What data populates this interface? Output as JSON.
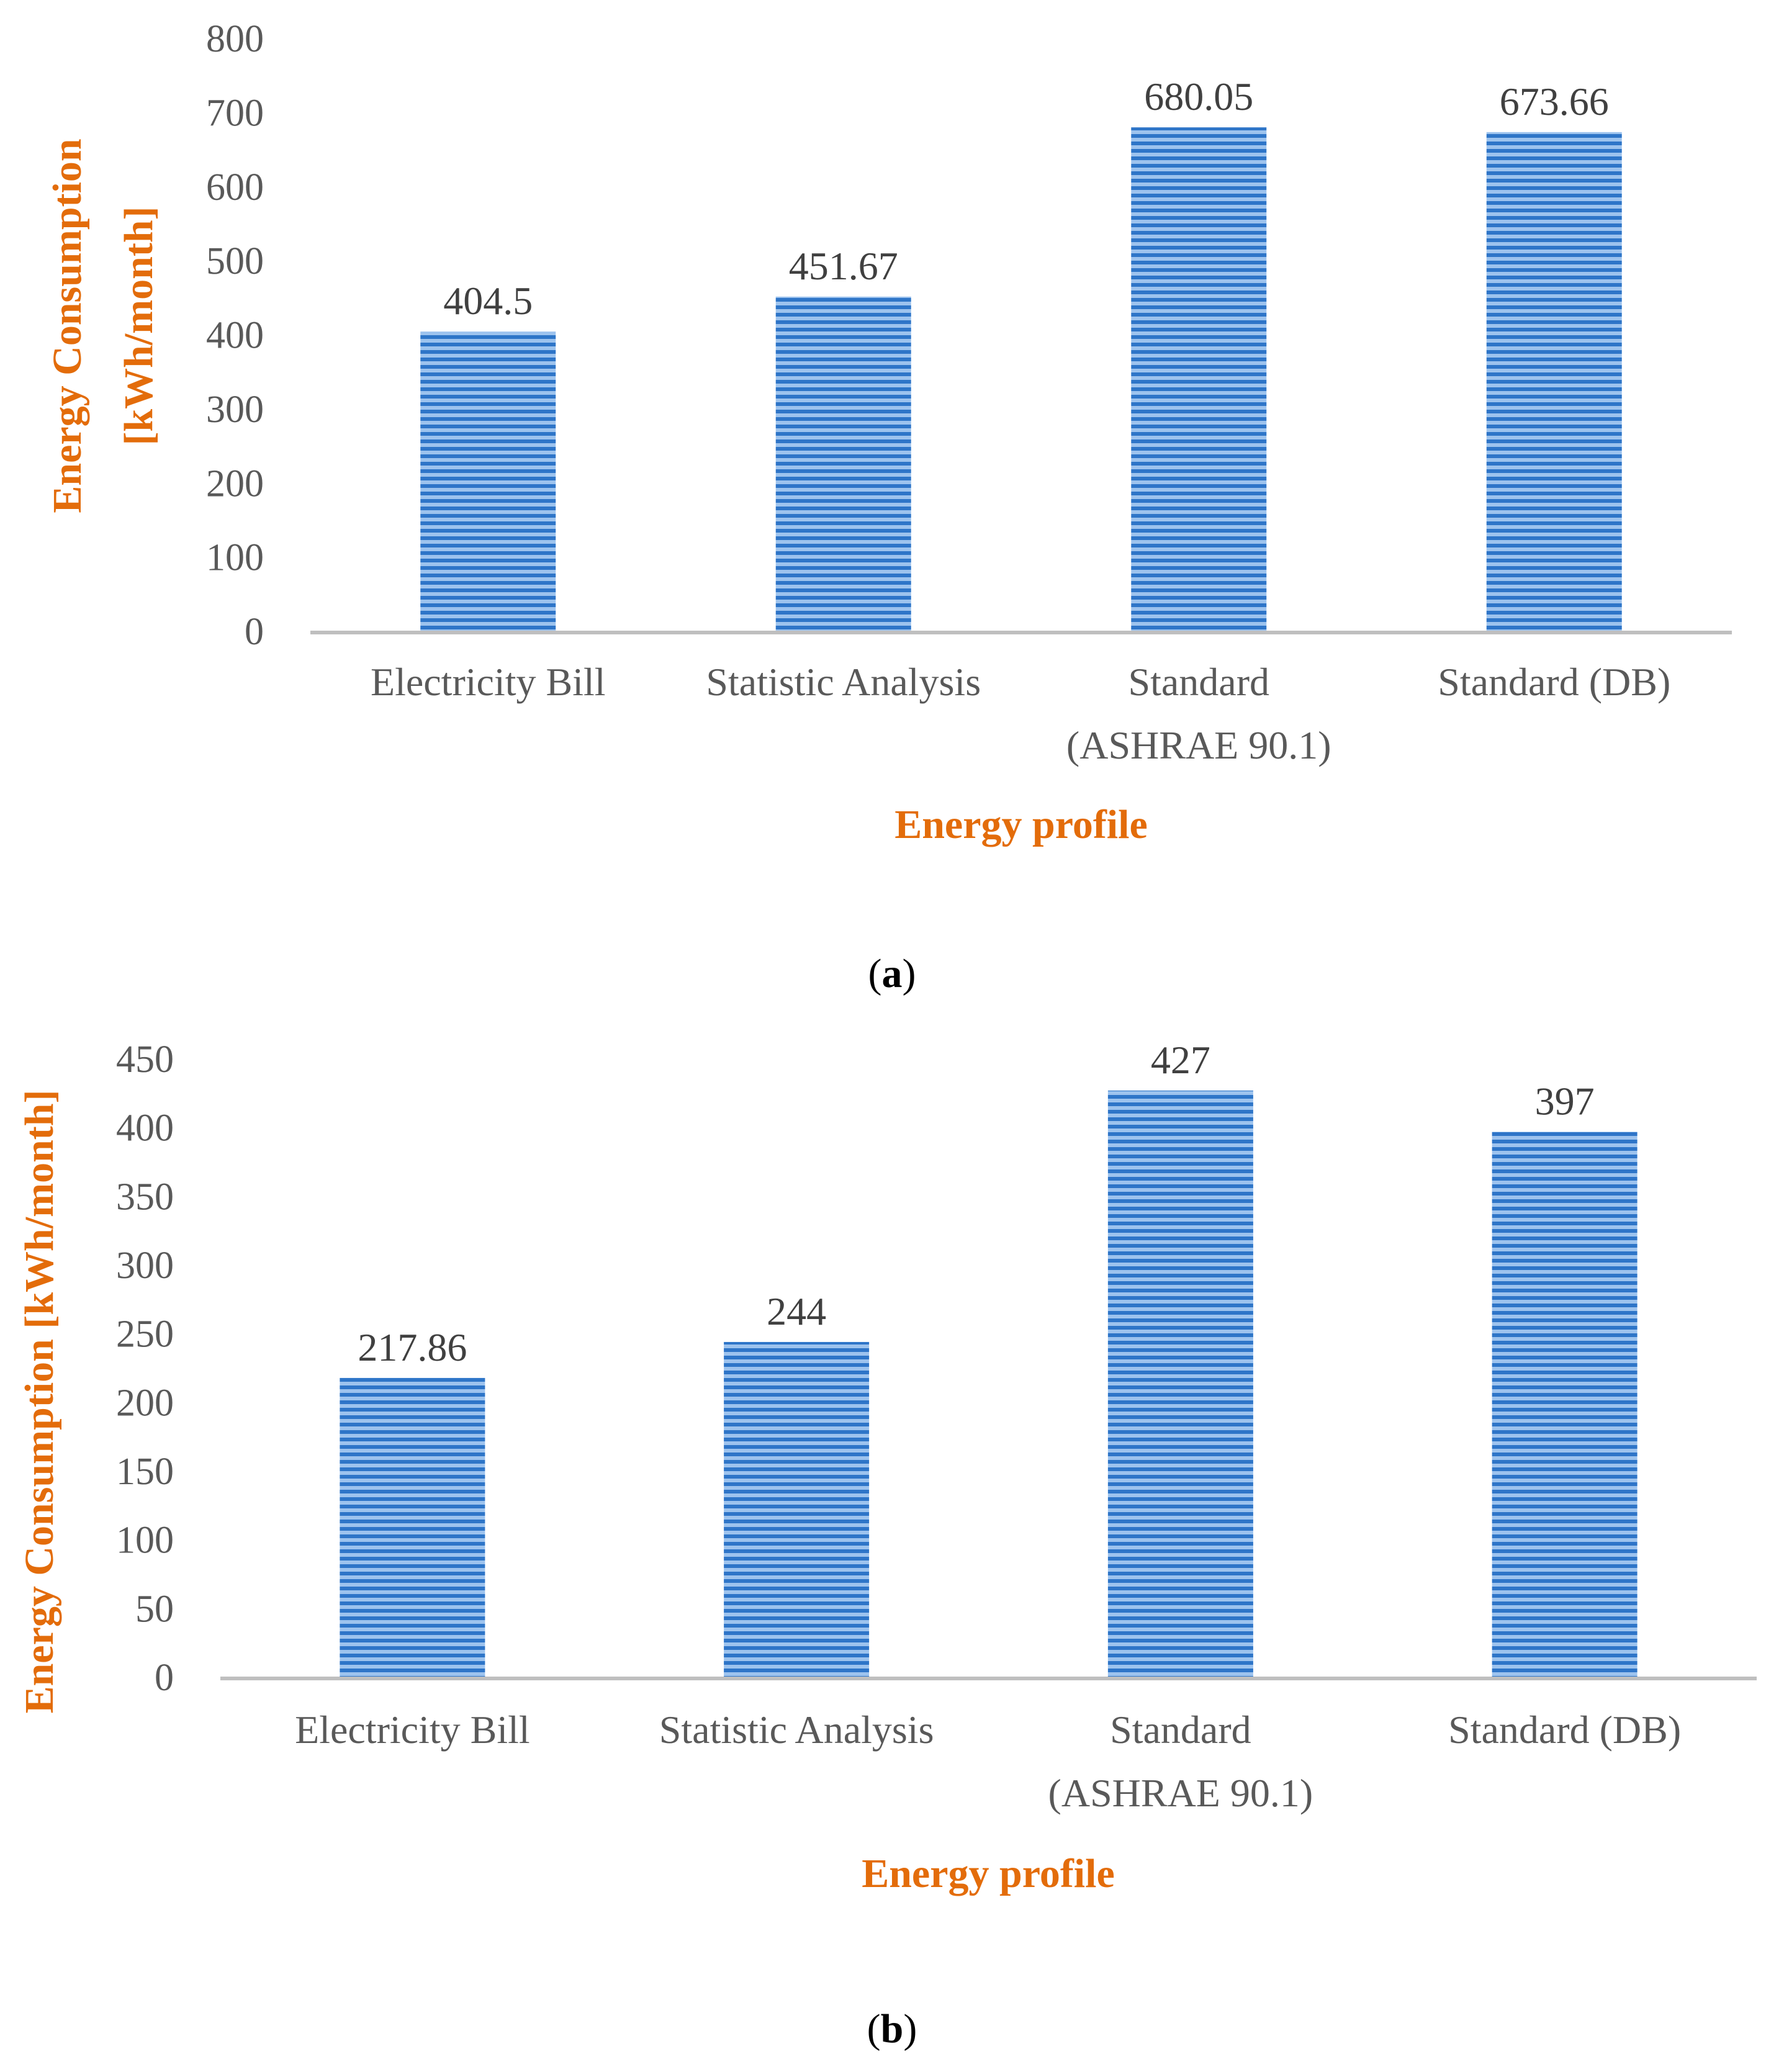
{
  "colors": {
    "bar_light": "#9DC3EE",
    "bar_dark": "#2E75C8",
    "axis": "#BFBFBF",
    "axis_title": "#E36C0A",
    "tick": "#595959"
  },
  "chart_data": [
    {
      "type": "bar",
      "panel_label": "a",
      "categories": [
        "Electricity Bill",
        "Statistic Analysis",
        "Standard (ASHRAE 90.1)",
        "Standard (DB)"
      ],
      "category_lines": [
        [
          "Electricity Bill"
        ],
        [
          "Statistic Analysis"
        ],
        [
          "Standard",
          "(ASHRAE 90.1)"
        ],
        [
          "Standard (DB)"
        ]
      ],
      "values": [
        404.5,
        451.67,
        680.05,
        673.66
      ],
      "value_labels": [
        "404.5",
        "451.67",
        "680.05",
        "673.66"
      ],
      "yticks": [
        "0",
        "100",
        "200",
        "300",
        "400",
        "500",
        "600",
        "700",
        "800"
      ],
      "ylim": [
        0,
        800
      ],
      "xlabel": "Energy profile",
      "ylabel": "Energy Consumption [kWh/month]",
      "ylabel_lines": [
        "Energy Consumption",
        "[kWh/month]"
      ],
      "grid": false
    },
    {
      "type": "bar",
      "panel_label": "b",
      "categories": [
        "Electricity Bill",
        "Statistic Analysis",
        "Standard (ASHRAE 90.1)",
        "Standard (DB)"
      ],
      "category_lines": [
        [
          "Electricity Bill"
        ],
        [
          "Statistic Analysis"
        ],
        [
          "Standard",
          "(ASHRAE 90.1)"
        ],
        [
          "Standard (DB)"
        ]
      ],
      "values": [
        217.86,
        244,
        427,
        397
      ],
      "value_labels": [
        "217.86",
        "244",
        "427",
        "397"
      ],
      "yticks": [
        "0",
        "50",
        "100",
        "150",
        "200",
        "250",
        "300",
        "350",
        "400",
        "450"
      ],
      "ylim": [
        0,
        450
      ],
      "xlabel": "Energy profile",
      "ylabel": "Energy Consumption [kWh/month]",
      "ylabel_lines": [
        "Energy Consumption [kWh/month]"
      ],
      "grid": false
    }
  ]
}
